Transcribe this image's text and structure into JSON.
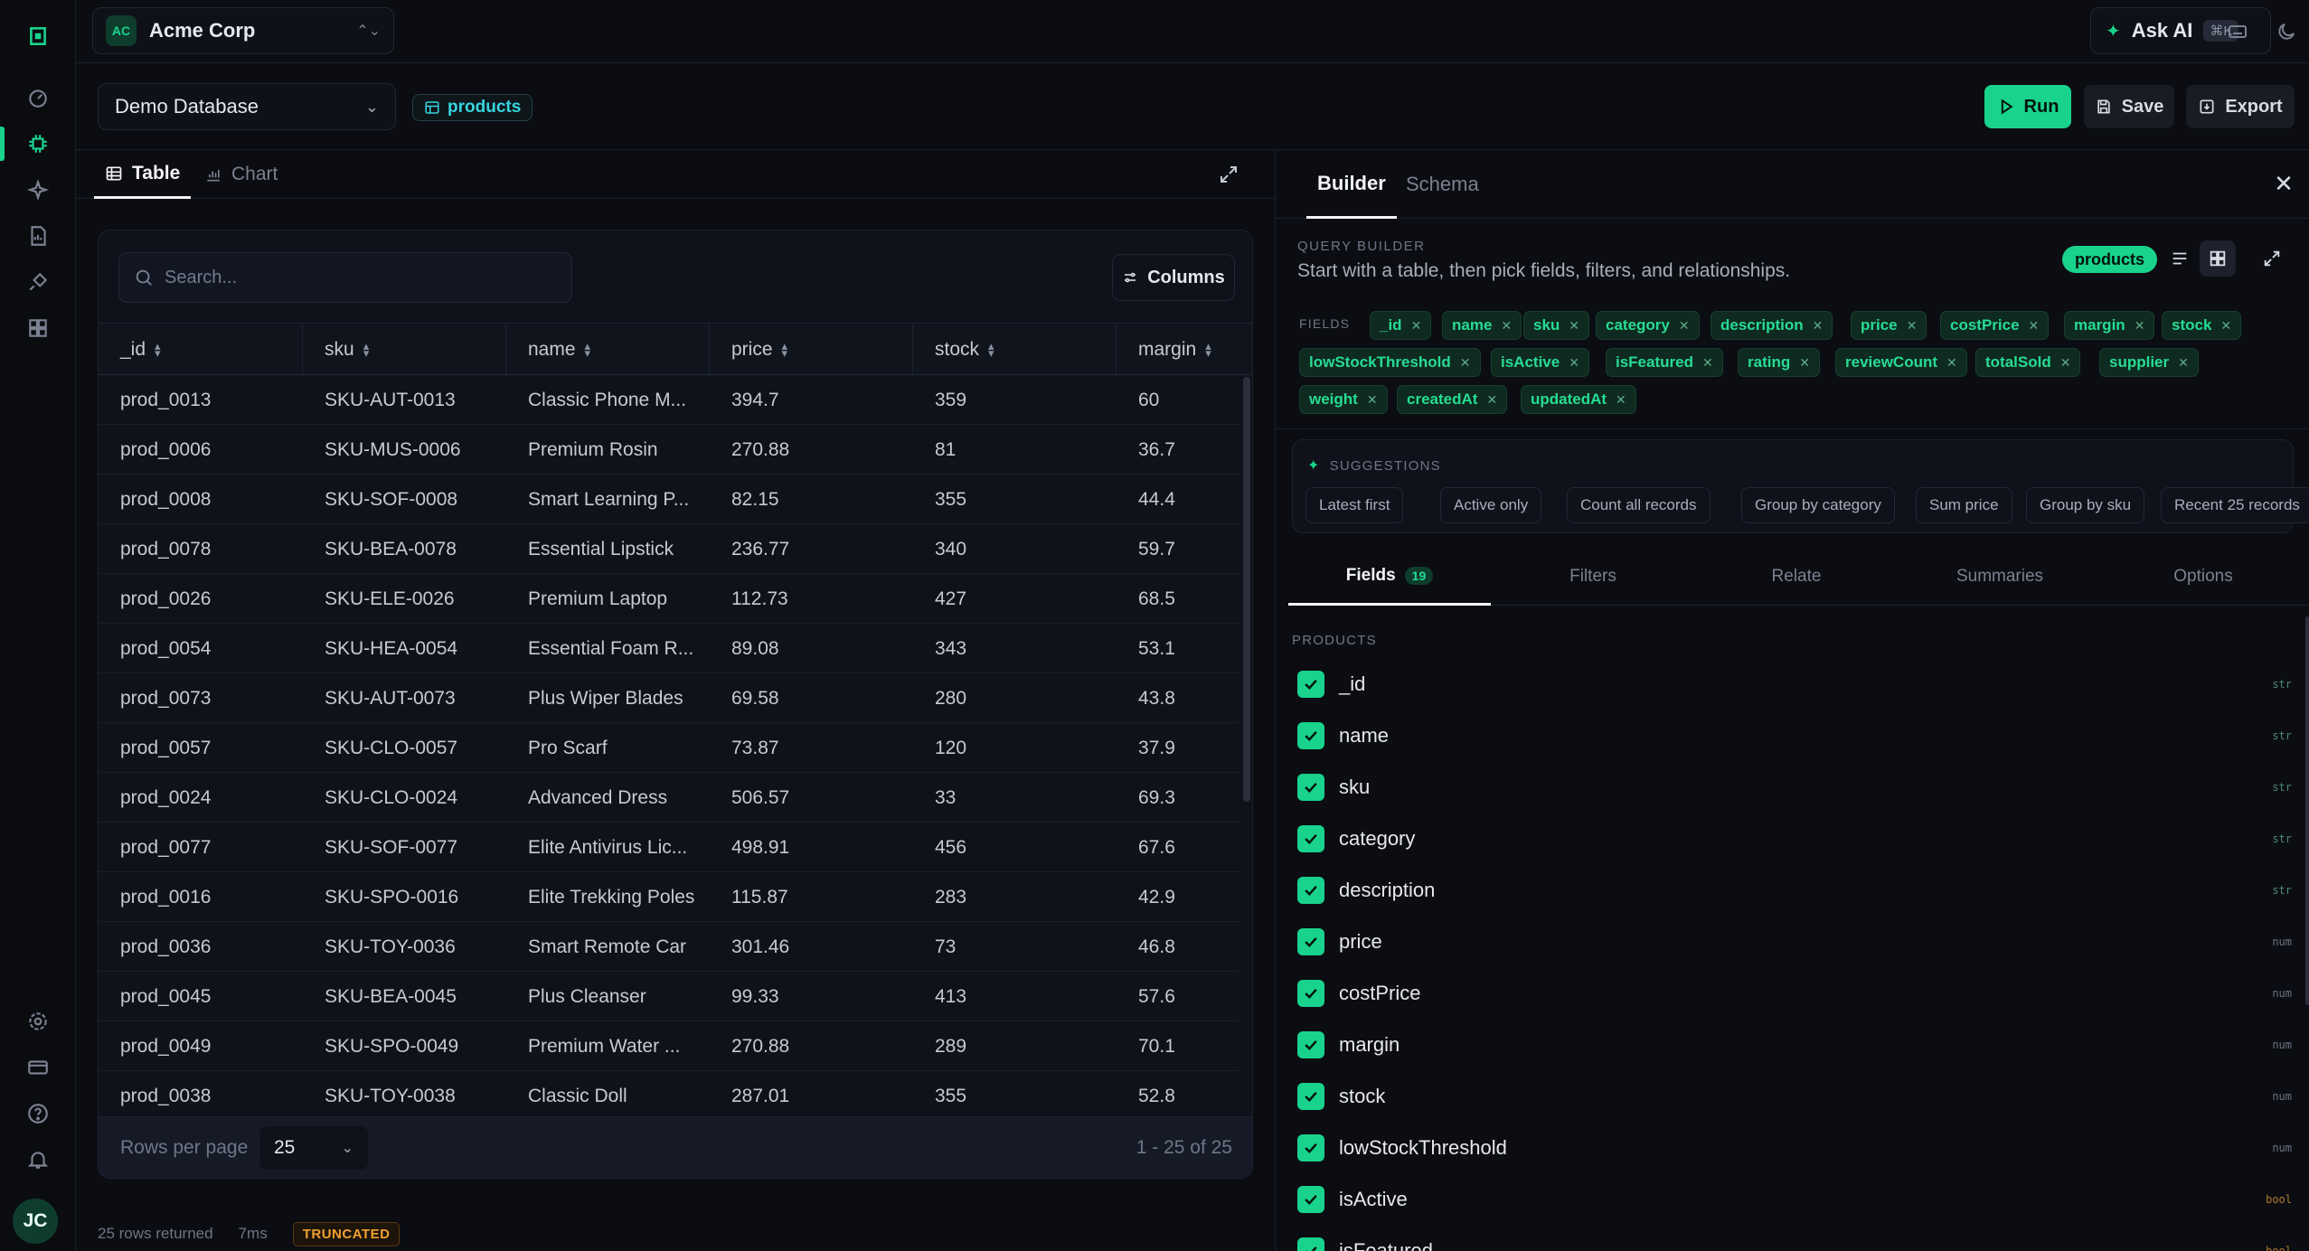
{
  "org": {
    "initials": "AC",
    "name": "Acme Corp"
  },
  "topbar": {
    "ask_ai": "Ask AI",
    "ask_ai_kbd": "⌘K"
  },
  "user": {
    "initials": "JC"
  },
  "database": {
    "name": "Demo Database"
  },
  "table_chip": "products",
  "actions": {
    "run": "Run",
    "save": "Save",
    "export": "Export"
  },
  "view_tabs": [
    {
      "label": "Table"
    },
    {
      "label": "Chart"
    }
  ],
  "search": {
    "placeholder": "Search..."
  },
  "columns_button": "Columns",
  "table": {
    "columns": [
      "_id",
      "sku",
      "name",
      "price",
      "stock",
      "margin"
    ],
    "rows": [
      [
        "prod_0013",
        "SKU-AUT-0013",
        "Classic Phone M...",
        "394.7",
        "359",
        "60"
      ],
      [
        "prod_0006",
        "SKU-MUS-0006",
        "Premium Rosin",
        "270.88",
        "81",
        "36.7"
      ],
      [
        "prod_0008",
        "SKU-SOF-0008",
        "Smart Learning P...",
        "82.15",
        "355",
        "44.4"
      ],
      [
        "prod_0078",
        "SKU-BEA-0078",
        "Essential Lipstick",
        "236.77",
        "340",
        "59.7"
      ],
      [
        "prod_0026",
        "SKU-ELE-0026",
        "Premium Laptop",
        "112.73",
        "427",
        "68.5"
      ],
      [
        "prod_0054",
        "SKU-HEA-0054",
        "Essential Foam R...",
        "89.08",
        "343",
        "53.1"
      ],
      [
        "prod_0073",
        "SKU-AUT-0073",
        "Plus Wiper Blades",
        "69.58",
        "280",
        "43.8"
      ],
      [
        "prod_0057",
        "SKU-CLO-0057",
        "Pro Scarf",
        "73.87",
        "120",
        "37.9"
      ],
      [
        "prod_0024",
        "SKU-CLO-0024",
        "Advanced Dress",
        "506.57",
        "33",
        "69.3"
      ],
      [
        "prod_0077",
        "SKU-SOF-0077",
        "Elite Antivirus Lic...",
        "498.91",
        "456",
        "67.6"
      ],
      [
        "prod_0016",
        "SKU-SPO-0016",
        "Elite Trekking Poles",
        "115.87",
        "283",
        "42.9"
      ],
      [
        "prod_0036",
        "SKU-TOY-0036",
        "Smart Remote Car",
        "301.46",
        "73",
        "46.8"
      ],
      [
        "prod_0045",
        "SKU-BEA-0045",
        "Plus Cleanser",
        "99.33",
        "413",
        "57.6"
      ],
      [
        "prod_0049",
        "SKU-SPO-0049",
        "Premium Water ...",
        "270.88",
        "289",
        "70.1"
      ],
      [
        "prod_0038",
        "SKU-TOY-0038",
        "Classic Doll",
        "287.01",
        "355",
        "52.8"
      ]
    ],
    "rows_per_page_label": "Rows per page",
    "rows_per_page": "25",
    "range": "1 - 25 of 25"
  },
  "status": {
    "rows_returned": "25 rows returned",
    "time": "7ms",
    "badge": "TRUNCATED"
  },
  "panel": {
    "tabs": [
      "Builder",
      "Schema"
    ],
    "kicker": "QUERY BUILDER",
    "description": "Start with a table, then pick fields, filters, and relationships.",
    "table_pill": "products",
    "fields_label": "FIELDS",
    "field_chips": [
      "_id",
      "name",
      "sku",
      "category",
      "description",
      "price",
      "costPrice",
      "margin",
      "stock",
      "lowStockThreshold",
      "isActive",
      "isFeatured",
      "rating",
      "reviewCount",
      "totalSold",
      "supplier",
      "weight",
      "createdAt",
      "updatedAt"
    ],
    "suggestions_label": "SUGGESTIONS",
    "suggestions": [
      "Latest first",
      "Active only",
      "Count all records",
      "Group by category",
      "Sum price",
      "Group by sku",
      "Recent 25 records"
    ],
    "subtabs": [
      "Fields",
      "Filters",
      "Relate",
      "Summaries",
      "Options"
    ],
    "fields_count": "19",
    "products_label": "PRODUCTS",
    "field_list": [
      {
        "name": "_id",
        "type": "str"
      },
      {
        "name": "name",
        "type": "str"
      },
      {
        "name": "sku",
        "type": "str"
      },
      {
        "name": "category",
        "type": "str"
      },
      {
        "name": "description",
        "type": "str"
      },
      {
        "name": "price",
        "type": "num"
      },
      {
        "name": "costPrice",
        "type": "num"
      },
      {
        "name": "margin",
        "type": "num"
      },
      {
        "name": "stock",
        "type": "num"
      },
      {
        "name": "lowStockThreshold",
        "type": "num"
      },
      {
        "name": "isActive",
        "type": "bool"
      },
      {
        "name": "isFeatured",
        "type": "bool"
      }
    ]
  },
  "colors": {
    "accent": "#19d38c",
    "background": "#0b0d12",
    "chip_text": "#27dc93",
    "warning": "#f0a030"
  }
}
